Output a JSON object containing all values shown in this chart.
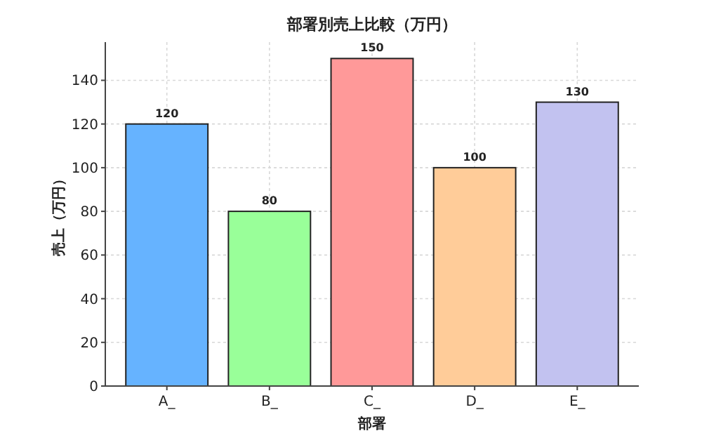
{
  "chart_data": {
    "type": "bar",
    "title": "部署別売上比較（万円）",
    "xlabel": "部署",
    "ylabel": "売上（万円）",
    "categories": [
      "A_",
      "B_",
      "C_",
      "D_",
      "E_"
    ],
    "values": [
      120,
      80,
      150,
      100,
      130
    ],
    "colors": [
      "#66b3ff",
      "#99ff99",
      "#ff9999",
      "#ffcc99",
      "#c2c2f0"
    ],
    "ylim": [
      0,
      157.5
    ],
    "yticks": [
      0,
      20,
      40,
      60,
      80,
      100,
      120,
      140
    ],
    "grid": true,
    "data_labels": true
  }
}
